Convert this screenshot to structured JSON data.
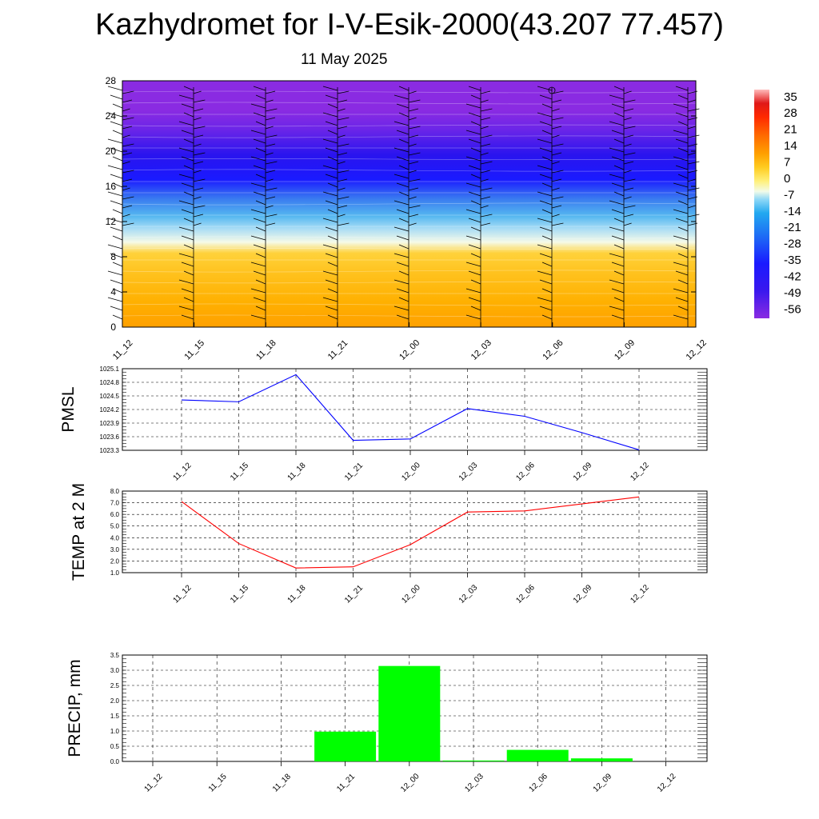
{
  "header": {
    "title": "Kazhydromet for I-V-Esik-2000(43.207 77.457)",
    "date": "11 May 2025"
  },
  "chart_data": [
    {
      "type": "heatmap",
      "name": "height-time temperature cross-section with wind barbs",
      "x_ticks": [
        "11_12",
        "11_15",
        "11_18",
        "11_21",
        "12_00",
        "12_03",
        "12_06",
        "12_09",
        "12_12"
      ],
      "y_ticks": [
        "0",
        "4",
        "8",
        "12",
        "16",
        "20",
        "24",
        "28"
      ],
      "ylim": [
        0,
        28
      ],
      "colorbar_labels": [
        "35",
        "28",
        "21",
        "14",
        "7",
        "0",
        "-7",
        "-14",
        "-21",
        "-28",
        "-35",
        "-42",
        "-49",
        "-56"
      ],
      "colorbar_range": [
        -60,
        38
      ],
      "colors": {
        "top": "#8a2be2",
        "cold": "#1a1aff",
        "mid": "#55b8f0",
        "freezing": "#f5fae8",
        "warm": "#ffd23a",
        "surface": "#ffa000"
      }
    },
    {
      "type": "line",
      "ylabel": "PMSL",
      "categories": [
        "11_12",
        "11_15",
        "11_18",
        "11_21",
        "12_00",
        "12_03",
        "12_06",
        "12_09",
        "12_12"
      ],
      "y_ticks": [
        "1025.1",
        "1024.8",
        "1024.5",
        "1024.2",
        "1023.9",
        "1023.6",
        "1023.3"
      ],
      "ylim": [
        1023.3,
        1025.1
      ],
      "values": [
        1024.41,
        1024.37,
        1024.97,
        1023.52,
        1023.55,
        1024.22,
        1024.05,
        1023.69,
        1023.31
      ],
      "color": "#0000ff",
      "grid": true
    },
    {
      "type": "line",
      "ylabel": "TEMP at 2 M",
      "categories": [
        "11_12",
        "11_15",
        "11_18",
        "11_21",
        "12_00",
        "12_03",
        "12_06",
        "12_09",
        "12_12"
      ],
      "y_ticks": [
        "8.0",
        "7.0",
        "6.0",
        "5.0",
        "4.0",
        "3.0",
        "2.0",
        "1.0"
      ],
      "ylim": [
        1.0,
        8.0
      ],
      "values": [
        7.1,
        3.5,
        1.4,
        1.5,
        3.4,
        6.2,
        6.3,
        6.9,
        7.5
      ],
      "color": "#ff0000",
      "grid": true
    },
    {
      "type": "bar",
      "ylabel": "PRECIP, mm",
      "categories": [
        "11_12",
        "11_15",
        "11_18",
        "11_21",
        "12_00",
        "12_03",
        "12_06",
        "12_09",
        "12_12"
      ],
      "y_ticks": [
        "3.5",
        "3.0",
        "2.5",
        "2.0",
        "1.5",
        "1.0",
        "0.5",
        "0.0"
      ],
      "ylim": [
        0,
        3.5
      ],
      "values": [
        0,
        0,
        0,
        0.98,
        3.14,
        0.03,
        0.38,
        0.1,
        0
      ],
      "color": "#00ff00",
      "grid": true
    }
  ]
}
